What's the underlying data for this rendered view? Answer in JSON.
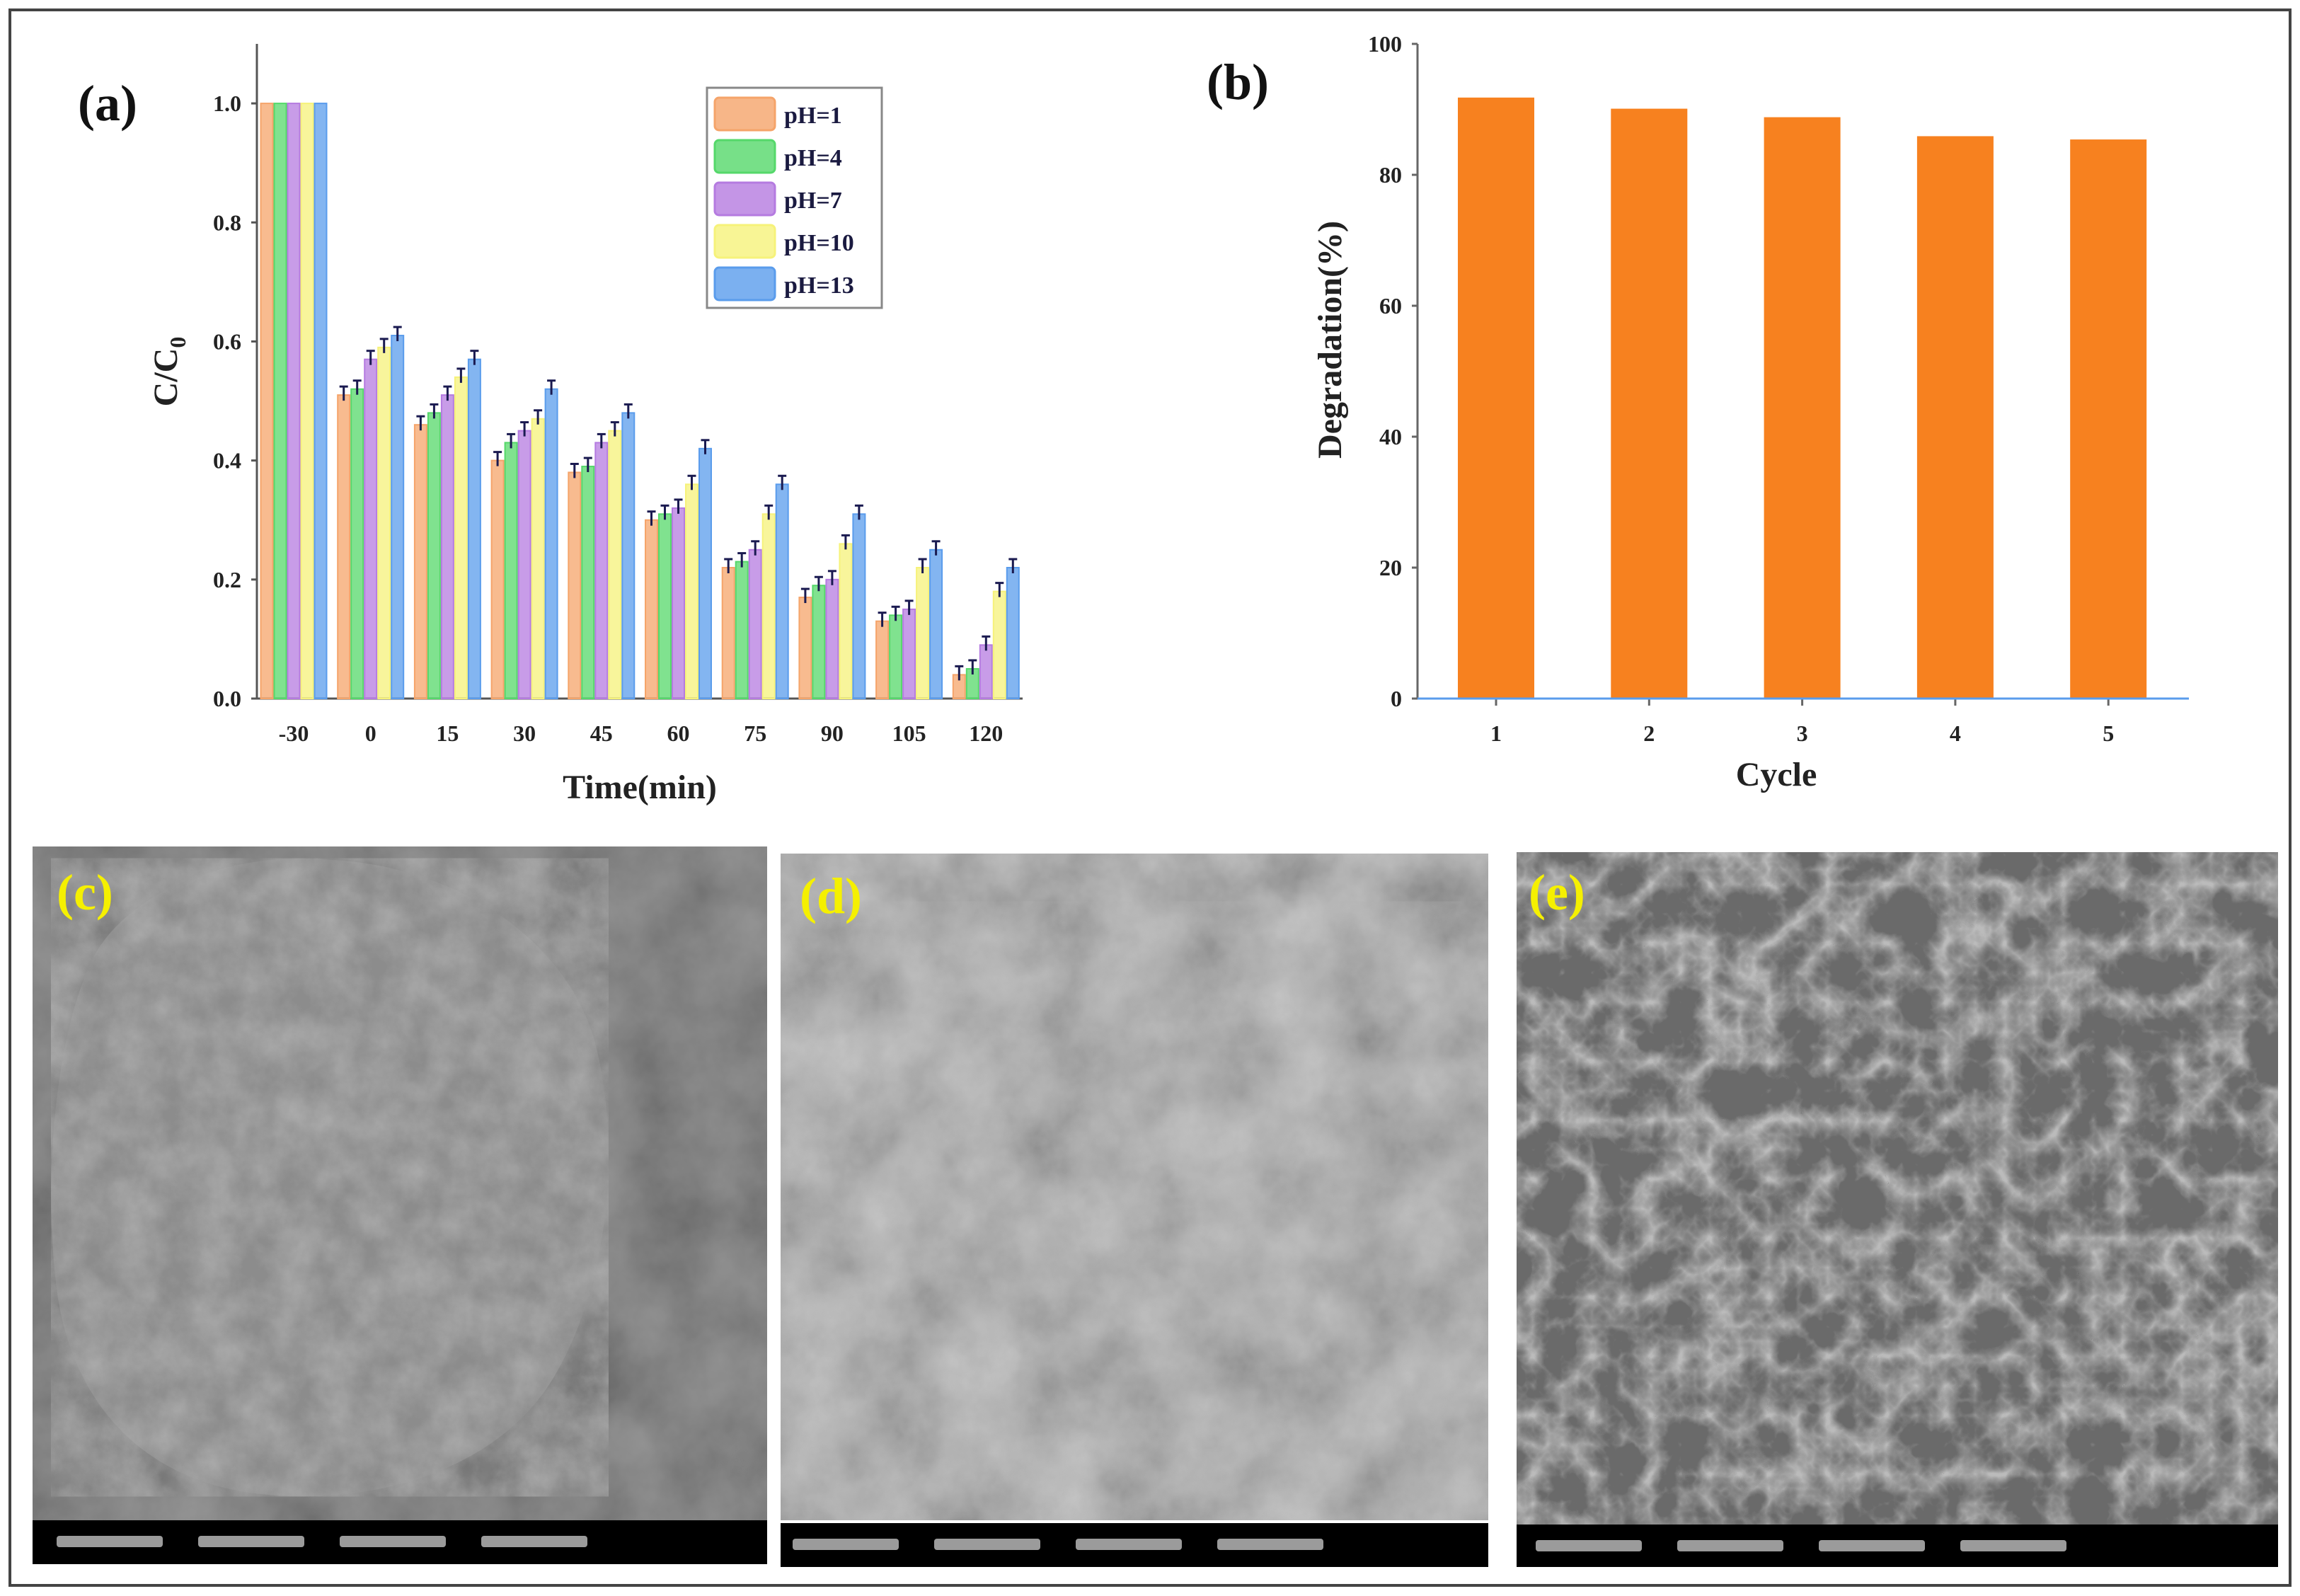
{
  "panels": {
    "a": "(a)",
    "b": "(b)",
    "c": "(c)",
    "d": "(d)",
    "e": "(e)"
  },
  "chart_data": [
    {
      "type": "bar",
      "panel": "(a)",
      "xlabel": "Time(min)",
      "ylabel": "C/C",
      "ylabel_sub": "0",
      "categories": [
        "-30",
        "0",
        "15",
        "30",
        "45",
        "60",
        "75",
        "90",
        "105",
        "120"
      ],
      "ylim": [
        0,
        1.1
      ],
      "yticks": [
        "0.0",
        "0.2",
        "0.4",
        "0.6",
        "0.8",
        "1.0"
      ],
      "legend": "top-right",
      "error_bars": true,
      "series": [
        {
          "name": "pH=1",
          "color": "#f5a46a",
          "values": [
            1.0,
            0.51,
            0.46,
            0.4,
            0.38,
            0.3,
            0.22,
            0.17,
            0.13,
            0.04
          ]
        },
        {
          "name": "pH=4",
          "color": "#55d86a",
          "values": [
            1.0,
            0.52,
            0.48,
            0.43,
            0.39,
            0.31,
            0.23,
            0.19,
            0.14,
            0.05
          ]
        },
        {
          "name": "pH=7",
          "color": "#b57be0",
          "values": [
            1.0,
            0.57,
            0.51,
            0.45,
            0.43,
            0.32,
            0.25,
            0.2,
            0.15,
            0.09
          ]
        },
        {
          "name": "pH=10",
          "color": "#f6f27a",
          "values": [
            1.0,
            0.59,
            0.54,
            0.47,
            0.45,
            0.36,
            0.31,
            0.26,
            0.22,
            0.18
          ]
        },
        {
          "name": "pH=13",
          "color": "#5a9cec",
          "values": [
            1.0,
            0.61,
            0.57,
            0.52,
            0.48,
            0.42,
            0.36,
            0.31,
            0.25,
            0.22
          ]
        }
      ]
    },
    {
      "type": "bar",
      "panel": "(b)",
      "xlabel": "Cycle",
      "ylabel": "Degradation(%)",
      "categories": [
        "1",
        "2",
        "3",
        "4",
        "5"
      ],
      "values": [
        91.8,
        90.1,
        88.8,
        85.9,
        85.4
      ],
      "color": "#f7811f",
      "ylim": [
        0,
        100
      ],
      "yticks": [
        "0",
        "20",
        "40",
        "60",
        "80",
        "100"
      ]
    }
  ]
}
